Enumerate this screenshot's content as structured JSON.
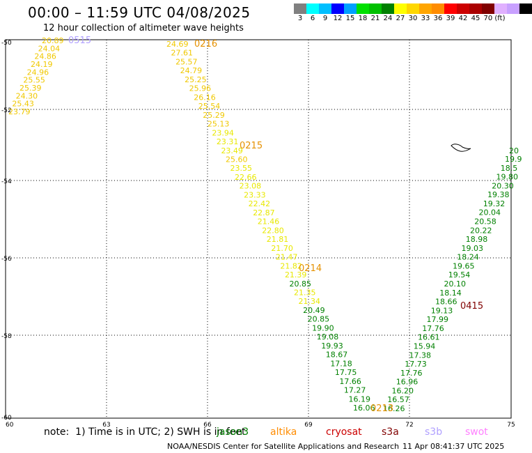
{
  "header": {
    "title": "00:00 – 11:59 UTC 04/08/2025",
    "subtitle": "12 hour collection of altimeter wave heights",
    "scale_colors": [
      "#808080",
      "#00ffff",
      "#00bfff",
      "#0000ff",
      "#00a0ff",
      "#00e000",
      "#00c000",
      "#008000",
      "#ffff00",
      "#ffd700",
      "#ffa500",
      "#ff8c00",
      "#ff0000",
      "#cc0000",
      "#aa0000",
      "#800000",
      "#e0b0ff",
      "#c8a0ff",
      "#000000"
    ],
    "scale_labels": [
      "3",
      "6",
      "9",
      "12",
      "15",
      "18",
      "21",
      "24",
      "27",
      "30",
      "33",
      "36",
      "39",
      "42",
      "45",
      "70 (ft)"
    ]
  },
  "map": {
    "lat_labels": [
      "-50",
      "-52",
      "-54",
      "-56",
      "-58",
      "-60"
    ],
    "lon_labels": [
      "60",
      "63",
      "66",
      "69",
      "72",
      "75"
    ],
    "passes": [
      {
        "label": "0216",
        "color": "#e69100"
      },
      {
        "label": "0515",
        "color": "#b0a0ff"
      },
      {
        "label": "0215",
        "color": "#e69100"
      },
      {
        "label": "0214",
        "color": "#e69100"
      },
      {
        "label": "0415",
        "color": "#800000"
      },
      {
        "label": "0213",
        "color": "#e69100"
      }
    ],
    "track_a": [
      "20.89",
      "24.04",
      "24.86",
      "24.19",
      "24.96",
      "25.55",
      "25.39",
      "24.30",
      "25.43",
      "23.79"
    ],
    "track_b": [
      "24.69",
      "27.61",
      "25.57",
      "24.79",
      "25.25",
      "25.96",
      "26.16",
      "25.54",
      "25.29",
      "25.13",
      "23.94",
      "23.31",
      "23.49",
      "25.60",
      "23.55",
      "22.66",
      "23.08",
      "23.33",
      "22.42",
      "22.87",
      "21.46",
      "22.80",
      "21.81",
      "21.70",
      "21.47",
      "21.82",
      "21.39",
      "20.85",
      "21.35",
      "21.34",
      "20.49",
      "20.85",
      "19.90",
      "19.08",
      "19.93",
      "18.67",
      "17.18",
      "17.75",
      "17.66",
      "17.27",
      "16.19",
      "16.06"
    ],
    "track_c": [
      "19.9",
      "18.5",
      "19.80",
      "20.30",
      "19.38",
      "19.32",
      "20.04",
      "20.58",
      "20.22",
      "18.98",
      "19.03",
      "18.24",
      "19.65",
      "19.54",
      "20.10",
      "18.14",
      "18.66",
      "19.13",
      "17.99",
      "17.76",
      "16.61",
      "15.94",
      "17.38",
      "17.73",
      "17.76",
      "16.96",
      "16.20",
      "16.57",
      "16.26"
    ],
    "track_c_top": "20"
  },
  "footer": {
    "note": "note:  1) Time is in UTC; 2) SWH is in feet",
    "satellites": [
      {
        "name": "jason3",
        "color": "#008000"
      },
      {
        "name": "altika",
        "color": "#ff8c00"
      },
      {
        "name": "cryosat",
        "color": "#cc0000"
      },
      {
        "name": "s3a",
        "color": "#800000"
      },
      {
        "name": "s3b",
        "color": "#b0a0ff"
      },
      {
        "name": "swot",
        "color": "#ff80ff"
      }
    ],
    "credit": "NOAA/NESDIS Center for Satellite Applications and Research",
    "timestamp": "11 Apr 08:41:37 UTC 2025"
  }
}
